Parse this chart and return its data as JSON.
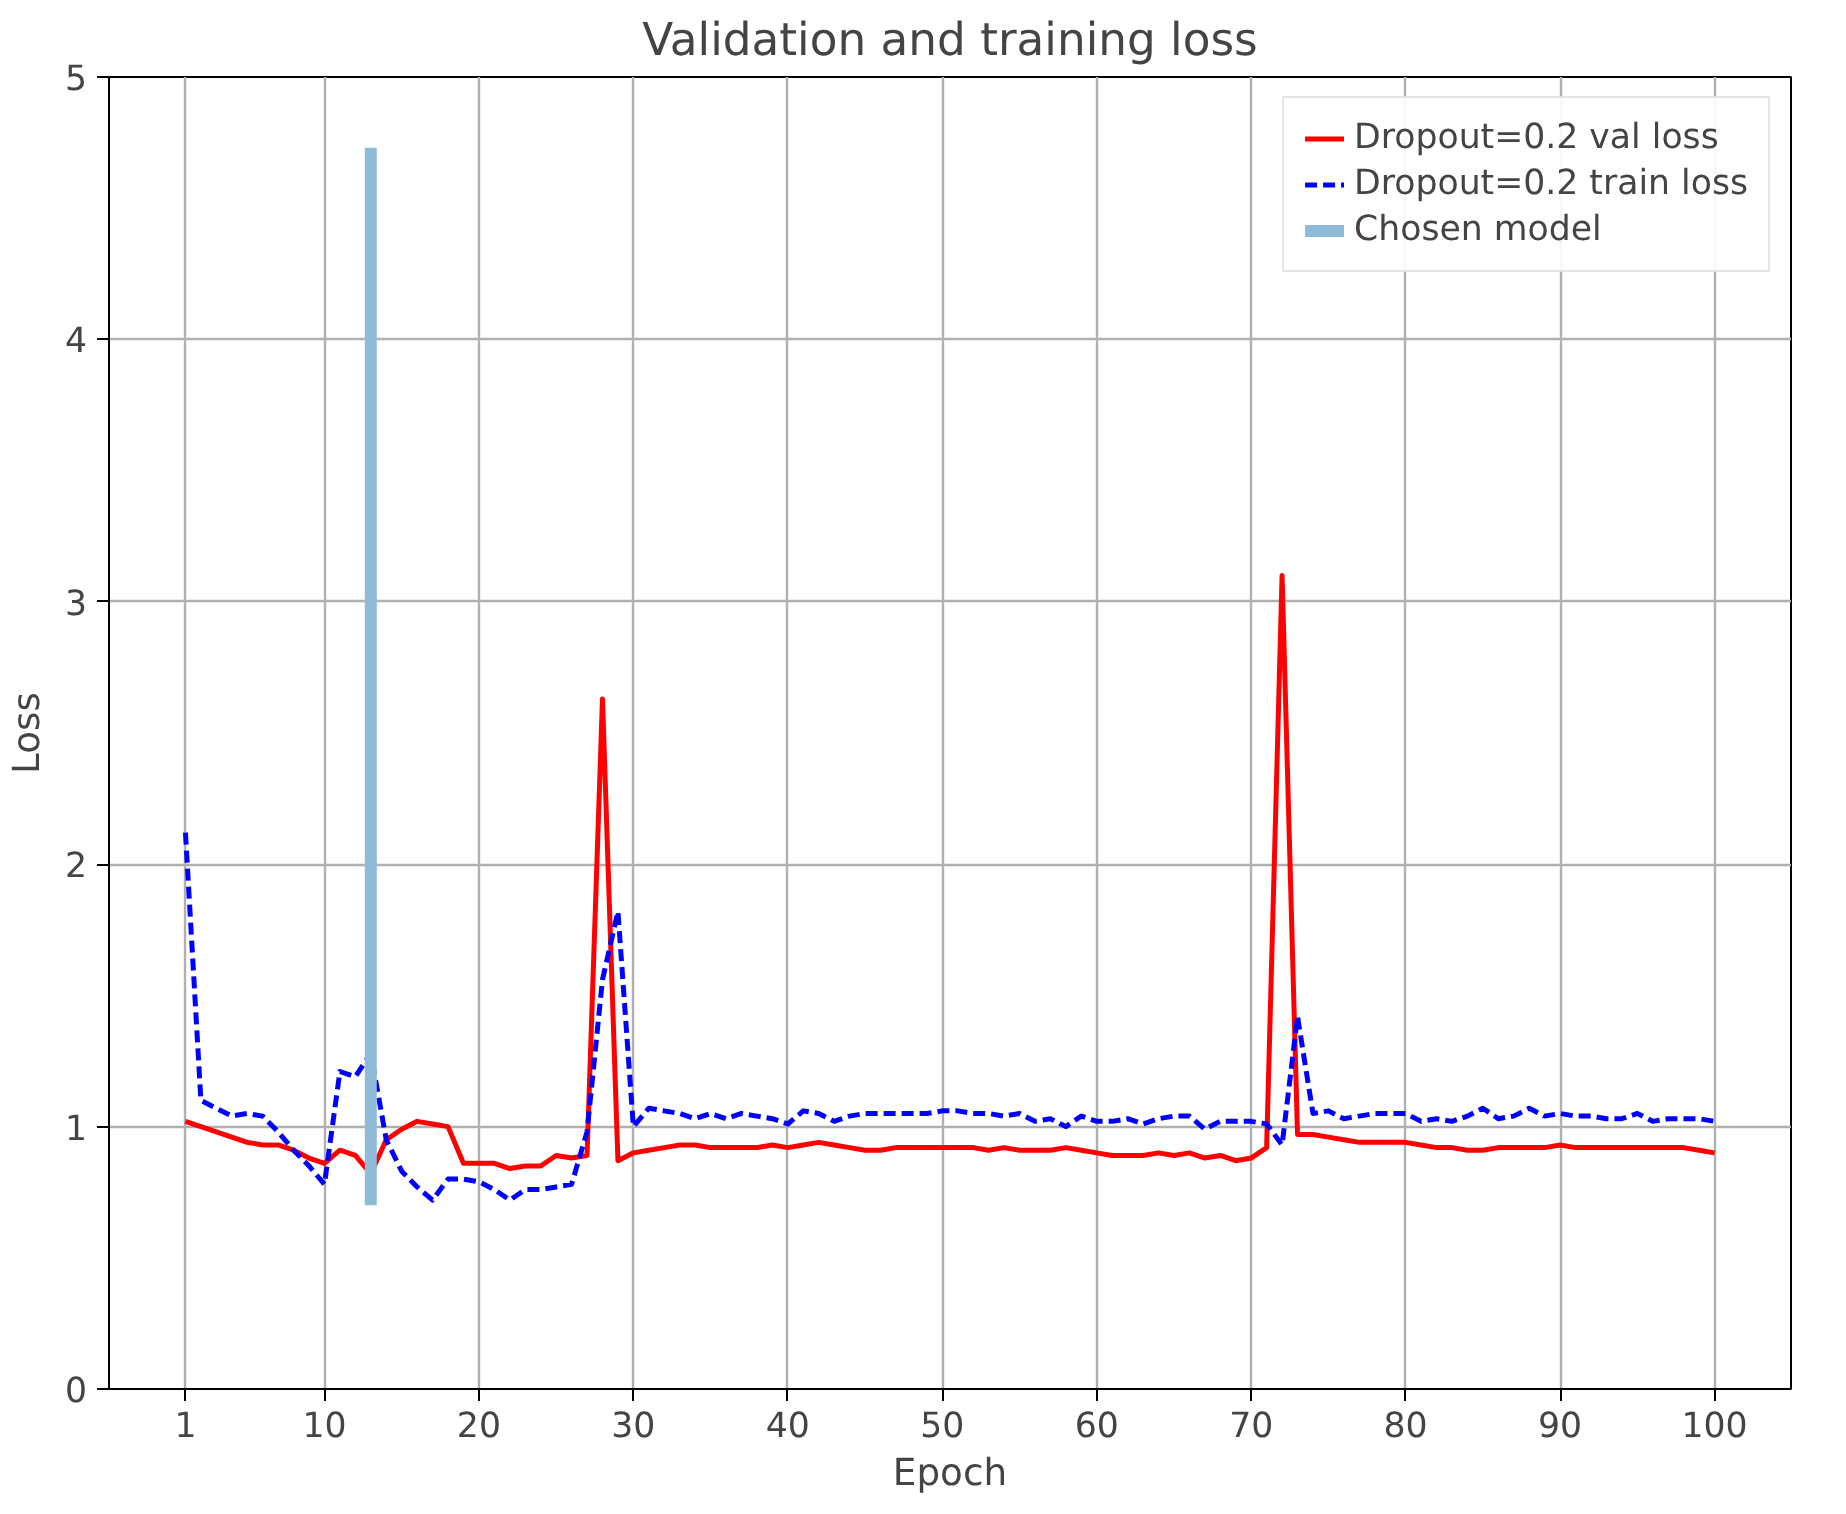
{
  "chart_data": {
    "type": "line",
    "title": "Validation and training loss",
    "xlabel": "Epoch",
    "ylabel": "Loss",
    "x": [
      1,
      2,
      3,
      4,
      5,
      6,
      7,
      8,
      9,
      10,
      11,
      12,
      13,
      14,
      15,
      16,
      17,
      18,
      19,
      20,
      21,
      22,
      23,
      24,
      25,
      26,
      27,
      28,
      29,
      30,
      31,
      32,
      33,
      34,
      35,
      36,
      37,
      38,
      39,
      40,
      41,
      42,
      43,
      44,
      45,
      46,
      47,
      48,
      49,
      50,
      51,
      52,
      53,
      54,
      55,
      56,
      57,
      58,
      59,
      60,
      61,
      62,
      63,
      64,
      65,
      66,
      67,
      68,
      69,
      70,
      71,
      72,
      73,
      74,
      75,
      76,
      77,
      78,
      79,
      80,
      81,
      82,
      83,
      84,
      85,
      86,
      87,
      88,
      89,
      90,
      91,
      92,
      93,
      94,
      95,
      96,
      97,
      98,
      99,
      100
    ],
    "series": [
      {
        "name": "Dropout=0.2 val loss",
        "color": "#ff0000",
        "line_style": "solid",
        "values": [
          1.02,
          1.0,
          0.98,
          0.96,
          0.94,
          0.93,
          0.93,
          0.91,
          0.88,
          0.86,
          0.91,
          0.89,
          0.82,
          0.95,
          0.99,
          1.02,
          1.01,
          1.0,
          0.86,
          0.86,
          0.86,
          0.84,
          0.85,
          0.85,
          0.89,
          0.88,
          0.89,
          2.63,
          0.87,
          0.9,
          0.91,
          0.92,
          0.93,
          0.93,
          0.92,
          0.92,
          0.92,
          0.92,
          0.93,
          0.92,
          0.93,
          0.94,
          0.93,
          0.92,
          0.91,
          0.91,
          0.92,
          0.92,
          0.92,
          0.92,
          0.92,
          0.92,
          0.91,
          0.92,
          0.91,
          0.91,
          0.91,
          0.92,
          0.91,
          0.9,
          0.89,
          0.89,
          0.89,
          0.9,
          0.89,
          0.9,
          0.88,
          0.89,
          0.87,
          0.88,
          0.92,
          3.1,
          0.97,
          0.97,
          0.96,
          0.95,
          0.94,
          0.94,
          0.94,
          0.94,
          0.93,
          0.92,
          0.92,
          0.91,
          0.91,
          0.92,
          0.92,
          0.92,
          0.92,
          0.93,
          0.92,
          0.92,
          0.92,
          0.92,
          0.92,
          0.92,
          0.92,
          0.92,
          0.91,
          0.9
        ]
      },
      {
        "name": "Dropout=0.2 train loss",
        "color": "#0000ff",
        "line_style": "dashed",
        "values": [
          2.12,
          1.1,
          1.07,
          1.04,
          1.05,
          1.04,
          0.98,
          0.91,
          0.85,
          0.78,
          1.21,
          1.19,
          1.28,
          0.95,
          0.83,
          0.77,
          0.72,
          0.8,
          0.8,
          0.79,
          0.76,
          0.72,
          0.76,
          0.76,
          0.77,
          0.78,
          0.98,
          1.56,
          1.82,
          1.0,
          1.07,
          1.06,
          1.05,
          1.03,
          1.05,
          1.03,
          1.05,
          1.04,
          1.03,
          1.01,
          1.06,
          1.05,
          1.02,
          1.04,
          1.05,
          1.05,
          1.05,
          1.05,
          1.05,
          1.06,
          1.06,
          1.05,
          1.05,
          1.04,
          1.05,
          1.02,
          1.03,
          1.0,
          1.04,
          1.02,
          1.02,
          1.03,
          1.01,
          1.03,
          1.04,
          1.04,
          0.99,
          1.02,
          1.02,
          1.02,
          1.01,
          0.93,
          1.42,
          1.05,
          1.06,
          1.03,
          1.04,
          1.05,
          1.05,
          1.05,
          1.02,
          1.03,
          1.02,
          1.04,
          1.07,
          1.03,
          1.04,
          1.07,
          1.04,
          1.05,
          1.04,
          1.04,
          1.03,
          1.03,
          1.05,
          1.02,
          1.03,
          1.03,
          1.03,
          1.02
        ]
      },
      {
        "name": "Chosen model",
        "color": "#8fbbd9",
        "line_style": "solid",
        "x": [
          13,
          13
        ],
        "values": [
          0.7,
          4.73
        ]
      }
    ],
    "xlim": [
      -3.95,
      104.95
    ],
    "ylim": [
      0,
      5
    ],
    "xticks": [
      1,
      10,
      20,
      30,
      40,
      50,
      60,
      70,
      80,
      90,
      100
    ],
    "yticks": [
      0,
      1,
      2,
      3,
      4,
      5
    ],
    "grid": true,
    "legend": "top right"
  }
}
